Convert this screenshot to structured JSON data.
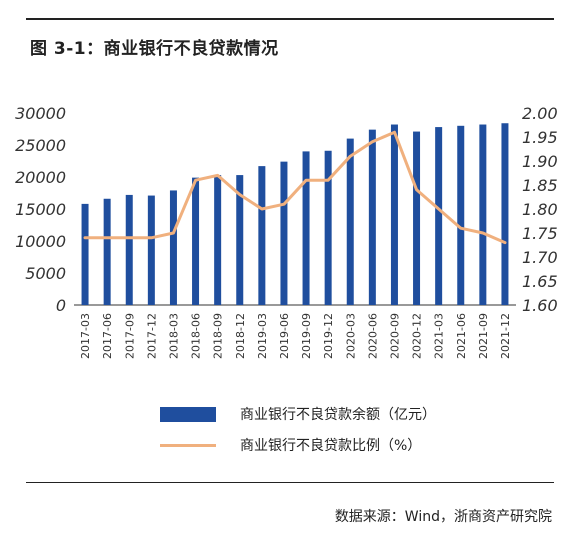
{
  "title": "图 3-1：商业银行不良贷款情况",
  "source": "数据来源：Wind，浙商资产研究院",
  "colors": {
    "bar": "#1f4e9e",
    "line": "#f0b07e",
    "rule": "#222222"
  },
  "chart_data": {
    "type": "bar",
    "categories": [
      "2017-03",
      "2017-06",
      "2017-09",
      "2017-12",
      "2018-03",
      "2018-06",
      "2018-09",
      "2018-12",
      "2019-03",
      "2019-06",
      "2019-09",
      "2019-12",
      "2020-03",
      "2020-06",
      "2020-09",
      "2020-12",
      "2021-03",
      "2021-06",
      "2021-09",
      "2021-12"
    ],
    "series": [
      {
        "name": "商业银行不良贷款余额（亿元）",
        "type": "bar",
        "axis": "left",
        "values": [
          15800,
          16600,
          17200,
          17100,
          17900,
          19900,
          20300,
          20300,
          21700,
          22400,
          24000,
          24100,
          26000,
          27400,
          28200,
          27100,
          27800,
          28000,
          28200,
          28400
        ]
      },
      {
        "name": "商业银行不良贷款比例（%）",
        "type": "line",
        "axis": "right",
        "values": [
          1.74,
          1.74,
          1.74,
          1.74,
          1.75,
          1.86,
          1.87,
          1.83,
          1.8,
          1.81,
          1.86,
          1.86,
          1.91,
          1.94,
          1.96,
          1.84,
          1.8,
          1.76,
          1.75,
          1.73
        ]
      }
    ],
    "y_left": {
      "ylim": [
        0,
        30000
      ],
      "ticks": [
        "0",
        "5000",
        "10000",
        "15000",
        "20000",
        "25000",
        "30000"
      ]
    },
    "y_right": {
      "ylim": [
        1.6,
        2.0
      ],
      "ticks": [
        "1.60",
        "1.65",
        "1.70",
        "1.75",
        "1.80",
        "1.85",
        "1.90",
        "1.95",
        "2.00"
      ]
    },
    "grid": false,
    "legend_position": "bottom"
  }
}
